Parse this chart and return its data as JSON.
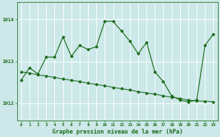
{
  "title": "Graphe pression niveau de la mer (hPa)",
  "ylabel_ticks": [
    1012,
    1013,
    1014
  ],
  "xlim": [
    -0.5,
    23.5
  ],
  "ylim": [
    1011.6,
    1014.4
  ],
  "background_color": "#cce8e8",
  "grid_color": "#ffffff",
  "line_color": "#1a6b1a",
  "zigzag_x": [
    0,
    1,
    2,
    3,
    4,
    5,
    6,
    7,
    8,
    9,
    10,
    11,
    12,
    13,
    14,
    15,
    16,
    17,
    18,
    19,
    20,
    21,
    22,
    23
  ],
  "zigzag_y": [
    1012.55,
    1012.85,
    1012.7,
    1013.1,
    1013.1,
    1013.58,
    1013.12,
    1013.38,
    1013.28,
    1013.35,
    1013.95,
    1013.95,
    1013.72,
    1013.48,
    1013.18,
    1013.45,
    1012.75,
    1012.52,
    1012.18,
    1012.08,
    1012.04,
    1012.08,
    1013.38,
    1013.65
  ],
  "flat_x": [
    0,
    1,
    2,
    3,
    4,
    5,
    6,
    7,
    8,
    9,
    10,
    11,
    12,
    13,
    14,
    15,
    16,
    17,
    18,
    19,
    20,
    21,
    22,
    23
  ],
  "flat_y": [
    1012.75,
    1012.72,
    1012.68,
    1012.65,
    1012.62,
    1012.58,
    1012.55,
    1012.52,
    1012.48,
    1012.45,
    1012.42,
    1012.38,
    1012.35,
    1012.32,
    1012.28,
    1012.25,
    1012.22,
    1012.18,
    1012.15,
    1012.12,
    1012.08,
    1012.06,
    1012.05,
    1012.04
  ],
  "title_fontsize": 6,
  "tick_fontsize": 5,
  "figsize": [
    3.2,
    2.0
  ],
  "dpi": 100
}
